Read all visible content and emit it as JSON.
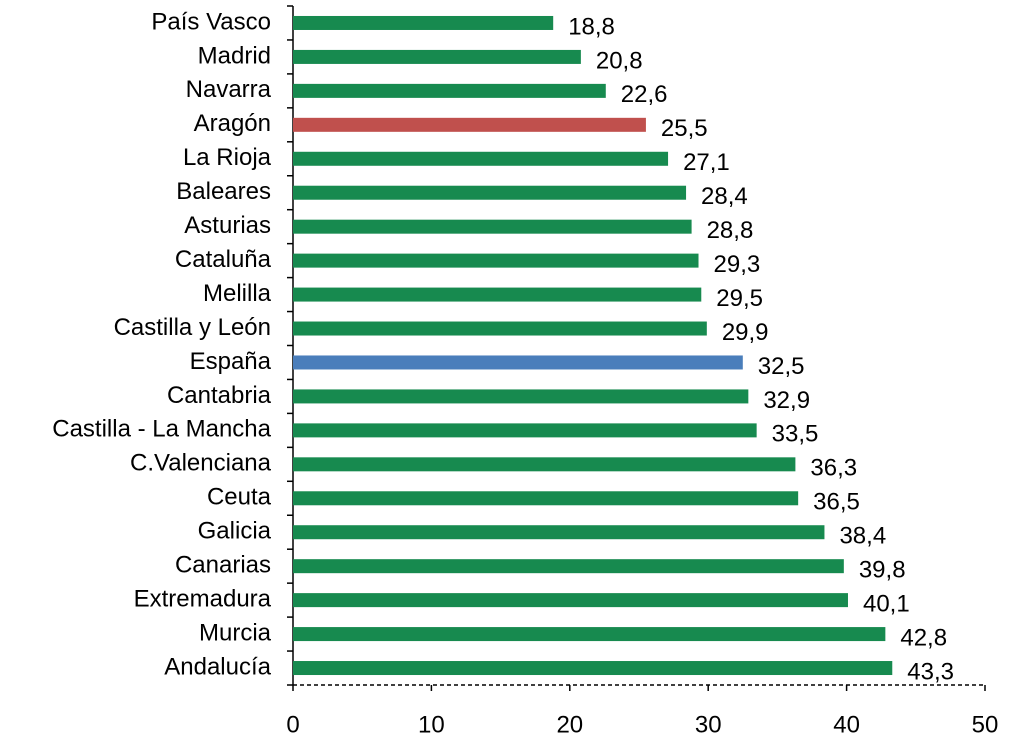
{
  "chart_data": {
    "type": "barh",
    "categories": [
      "País Vasco",
      "Madrid",
      "Navarra",
      "Aragón",
      "La Rioja",
      "Baleares",
      "Asturias",
      "Cataluña",
      "Melilla",
      "Castilla y León",
      "España",
      "Cantabria",
      "Castilla - La Mancha",
      "C.Valenciana",
      "Ceuta",
      "Galicia",
      "Canarias",
      "Extremadura",
      "Murcia",
      "Andalucía"
    ],
    "values": [
      18.8,
      20.8,
      22.6,
      25.5,
      27.1,
      28.4,
      28.8,
      29.3,
      29.5,
      29.9,
      32.5,
      32.9,
      33.5,
      36.3,
      36.5,
      38.4,
      39.8,
      40.1,
      42.8,
      43.3
    ],
    "value_labels": [
      "18,8",
      "20,8",
      "22,6",
      "25,5",
      "27,1",
      "28,4",
      "28,8",
      "29,3",
      "29,5",
      "29,9",
      "32,5",
      "32,9",
      "33,5",
      "36,3",
      "36,5",
      "38,4",
      "39,8",
      "40,1",
      "42,8",
      "43,3"
    ],
    "colors": [
      "#178a4f",
      "#178a4f",
      "#178a4f",
      "#c0504d",
      "#178a4f",
      "#178a4f",
      "#178a4f",
      "#178a4f",
      "#178a4f",
      "#178a4f",
      "#4a7ebb",
      "#178a4f",
      "#178a4f",
      "#178a4f",
      "#178a4f",
      "#178a4f",
      "#178a4f",
      "#178a4f",
      "#178a4f",
      "#178a4f"
    ],
    "xlim": [
      0,
      50
    ],
    "xticks": [
      0,
      10,
      20,
      30,
      40,
      50
    ]
  }
}
